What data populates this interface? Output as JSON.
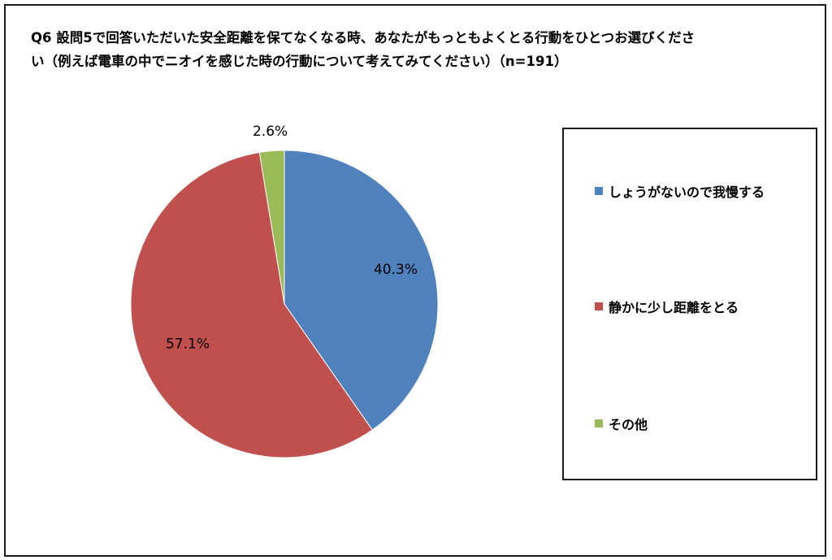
{
  "title": "Q6 設問5で回答いただいた安全距離を保てなくなる時、あなたがもっともよくとる行動をひとつお選びください（例えば電車の中でニオイを感じた時の行動について考えてみてください）（n=191）",
  "chart_data": {
    "type": "pie",
    "title": "Q6 設問5で回答いただいた安全距離を保てなくなる時、あなたがもっともよくとる行動をひとつお選びください（例えば電車の中でニオイを感じた時の行動について考えてみてください）（n=191）",
    "categories": [
      "しょうがないので我慢する",
      "静かに少し距離をとる",
      "その他"
    ],
    "values": [
      40.3,
      57.1,
      2.6
    ],
    "labels": [
      "40.3%",
      "57.1%",
      "2.6%"
    ],
    "colors": [
      "#4f81bd",
      "#c0504d",
      "#9bbb59"
    ],
    "legend_position": "right"
  }
}
